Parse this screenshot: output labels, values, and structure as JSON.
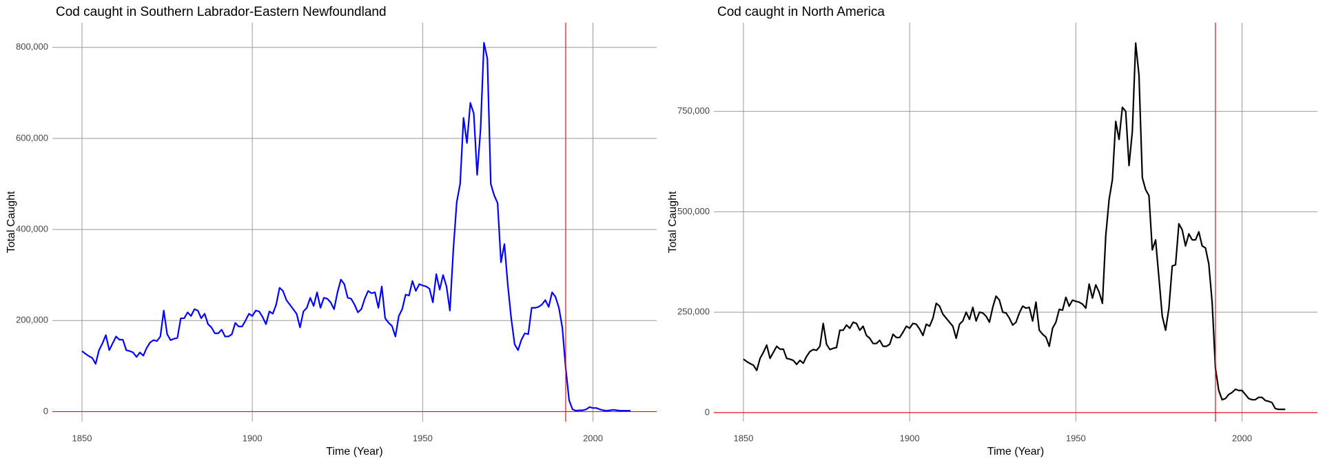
{
  "chart_data": [
    {
      "type": "line",
      "title": "Cod caught in Southern Labrador-Eastern Newfoundland",
      "x_label": "Time (Year)",
      "y_label": "Total Caught",
      "color": "#0000ff",
      "ref_color": "#ff0000",
      "vline": 1992,
      "hline": 0,
      "grid": true,
      "xlim": [
        1841.3,
        2018.7
      ],
      "ylim": [
        -22000,
        854000
      ],
      "xticks": [
        1850,
        1900,
        1950,
        2000
      ],
      "yticks": [
        0,
        {
          "value": 200000,
          "label": "200,000"
        },
        {
          "value": 400000,
          "label": "400,000"
        },
        {
          "value": 600000,
          "label": "600,000"
        },
        {
          "value": 800000,
          "label": "800,000"
        }
      ],
      "x": [
        1850,
        1851,
        1852,
        1853,
        1854,
        1855,
        1856,
        1857,
        1858,
        1859,
        1860,
        1861,
        1862,
        1863,
        1864,
        1865,
        1866,
        1867,
        1868,
        1869,
        1870,
        1871,
        1872,
        1873,
        1874,
        1875,
        1876,
        1877,
        1878,
        1879,
        1880,
        1881,
        1882,
        1883,
        1884,
        1885,
        1886,
        1887,
        1888,
        1889,
        1890,
        1891,
        1892,
        1893,
        1894,
        1895,
        1896,
        1897,
        1898,
        1899,
        1900,
        1901,
        1902,
        1903,
        1904,
        1905,
        1906,
        1907,
        1908,
        1909,
        1910,
        1911,
        1912,
        1913,
        1914,
        1915,
        1916,
        1917,
        1918,
        1919,
        1920,
        1921,
        1922,
        1923,
        1924,
        1925,
        1926,
        1927,
        1928,
        1929,
        1930,
        1931,
        1932,
        1933,
        1934,
        1935,
        1936,
        1937,
        1938,
        1939,
        1940,
        1941,
        1942,
        1943,
        1944,
        1945,
        1946,
        1947,
        1948,
        1949,
        1950,
        1951,
        1952,
        1953,
        1954,
        1955,
        1956,
        1957,
        1958,
        1959,
        1960,
        1961,
        1962,
        1963,
        1964,
        1965,
        1966,
        1967,
        1968,
        1969,
        1970,
        1971,
        1972,
        1973,
        1974,
        1975,
        1976,
        1977,
        1978,
        1979,
        1980,
        1981,
        1982,
        1983,
        1984,
        1985,
        1986,
        1987,
        1988,
        1989,
        1990,
        1991,
        1992,
        1993,
        1994,
        1995,
        1996,
        1997,
        1998,
        1999,
        2000,
        2001,
        2002,
        2003,
        2004,
        2005,
        2006,
        2007,
        2008,
        2009,
        2010,
        2011
      ],
      "values": [
        133000,
        127000,
        122000,
        118000,
        105000,
        135000,
        150000,
        168000,
        135000,
        150000,
        165000,
        158000,
        158000,
        135000,
        133000,
        130000,
        120000,
        130000,
        123000,
        140000,
        152000,
        157000,
        155000,
        165000,
        222000,
        170000,
        157000,
        160000,
        162000,
        205000,
        205000,
        218000,
        210000,
        225000,
        222000,
        205000,
        215000,
        192000,
        185000,
        172000,
        172000,
        180000,
        165000,
        165000,
        170000,
        195000,
        187000,
        187000,
        200000,
        215000,
        210000,
        222000,
        220000,
        208000,
        192000,
        220000,
        215000,
        235000,
        272000,
        265000,
        245000,
        235000,
        225000,
        215000,
        185000,
        220000,
        228000,
        250000,
        232000,
        262000,
        228000,
        250000,
        248000,
        240000,
        225000,
        262000,
        290000,
        280000,
        250000,
        248000,
        235000,
        218000,
        225000,
        248000,
        265000,
        260000,
        262000,
        228000,
        275000,
        205000,
        195000,
        188000,
        165000,
        210000,
        225000,
        257000,
        255000,
        287000,
        265000,
        280000,
        277000,
        275000,
        270000,
        240000,
        302000,
        268000,
        300000,
        275000,
        222000,
        355000,
        460000,
        500000,
        645000,
        590000,
        678000,
        655000,
        520000,
        620000,
        810000,
        775000,
        500000,
        475000,
        458000,
        328000,
        368000,
        278000,
        205000,
        148000,
        135000,
        158000,
        172000,
        170000,
        228000,
        228000,
        230000,
        235000,
        245000,
        230000,
        262000,
        252000,
        228000,
        185000,
        95000,
        25000,
        5000,
        2000,
        3000,
        3000,
        5000,
        10000,
        8000,
        8000,
        5000,
        3000,
        2000,
        3000,
        4000,
        3000,
        2000,
        2000,
        2000,
        2000
      ]
    },
    {
      "type": "line",
      "title": "Cod caught in North America",
      "x_label": "Time (Year)",
      "y_label": "Total Caught",
      "color": "#000000",
      "ref_color": "#ff0000",
      "vline": 1992,
      "hline": 0,
      "grid": true,
      "xlim": [
        1841.1,
        2022.7
      ],
      "ylim": [
        -22600,
        970600
      ],
      "xticks": [
        1850,
        1900,
        1950,
        2000
      ],
      "yticks": [
        0,
        {
          "value": 250000,
          "label": "250,000"
        },
        {
          "value": 500000,
          "label": "500,000"
        },
        {
          "value": 750000,
          "label": "750,000"
        }
      ],
      "x": [
        1850,
        1851,
        1852,
        1853,
        1854,
        1855,
        1856,
        1857,
        1858,
        1859,
        1860,
        1861,
        1862,
        1863,
        1864,
        1865,
        1866,
        1867,
        1868,
        1869,
        1870,
        1871,
        1872,
        1873,
        1874,
        1875,
        1876,
        1877,
        1878,
        1879,
        1880,
        1881,
        1882,
        1883,
        1884,
        1885,
        1886,
        1887,
        1888,
        1889,
        1890,
        1891,
        1892,
        1893,
        1894,
        1895,
        1896,
        1897,
        1898,
        1899,
        1900,
        1901,
        1902,
        1903,
        1904,
        1905,
        1906,
        1907,
        1908,
        1909,
        1910,
        1911,
        1912,
        1913,
        1914,
        1915,
        1916,
        1917,
        1918,
        1919,
        1920,
        1921,
        1922,
        1923,
        1924,
        1925,
        1926,
        1927,
        1928,
        1929,
        1930,
        1931,
        1932,
        1933,
        1934,
        1935,
        1936,
        1937,
        1938,
        1939,
        1940,
        1941,
        1942,
        1943,
        1944,
        1945,
        1946,
        1947,
        1948,
        1949,
        1950,
        1951,
        1952,
        1953,
        1954,
        1955,
        1956,
        1957,
        1958,
        1959,
        1960,
        1961,
        1962,
        1963,
        1964,
        1965,
        1966,
        1967,
        1968,
        1969,
        1970,
        1971,
        1972,
        1973,
        1974,
        1975,
        1976,
        1977,
        1978,
        1979,
        1980,
        1981,
        1982,
        1983,
        1984,
        1985,
        1986,
        1987,
        1988,
        1989,
        1990,
        1991,
        1992,
        1993,
        1994,
        1995,
        1996,
        1997,
        1998,
        1999,
        2000,
        2001,
        2002,
        2003,
        2004,
        2005,
        2006,
        2007,
        2008,
        2009,
        2010,
        2011,
        2012,
        2013
      ],
      "values": [
        133000,
        127000,
        122000,
        118000,
        105000,
        135000,
        150000,
        168000,
        135000,
        150000,
        165000,
        158000,
        158000,
        135000,
        133000,
        130000,
        120000,
        130000,
        123000,
        140000,
        152000,
        157000,
        155000,
        165000,
        222000,
        170000,
        157000,
        160000,
        162000,
        205000,
        205000,
        218000,
        210000,
        225000,
        222000,
        205000,
        215000,
        192000,
        185000,
        172000,
        172000,
        180000,
        165000,
        165000,
        170000,
        195000,
        187000,
        187000,
        200000,
        215000,
        210000,
        222000,
        220000,
        208000,
        192000,
        220000,
        215000,
        235000,
        272000,
        265000,
        245000,
        235000,
        225000,
        215000,
        185000,
        220000,
        228000,
        250000,
        232000,
        262000,
        228000,
        250000,
        248000,
        240000,
        225000,
        262000,
        290000,
        280000,
        250000,
        248000,
        235000,
        218000,
        225000,
        248000,
        265000,
        260000,
        262000,
        228000,
        275000,
        205000,
        195000,
        188000,
        165000,
        210000,
        225000,
        257000,
        255000,
        287000,
        265000,
        280000,
        277000,
        275000,
        270000,
        260000,
        320000,
        285000,
        318000,
        300000,
        272000,
        440000,
        530000,
        580000,
        725000,
        680000,
        760000,
        750000,
        615000,
        700000,
        920000,
        840000,
        585000,
        555000,
        540000,
        405000,
        430000,
        335000,
        240000,
        205000,
        260000,
        365000,
        368000,
        470000,
        455000,
        415000,
        445000,
        430000,
        430000,
        450000,
        415000,
        410000,
        370000,
        275000,
        110000,
        55000,
        32000,
        35000,
        45000,
        50000,
        58000,
        55000,
        55000,
        45000,
        35000,
        32000,
        32000,
        38000,
        38000,
        30000,
        28000,
        25000,
        10000,
        8000,
        8000,
        8000
      ]
    }
  ]
}
